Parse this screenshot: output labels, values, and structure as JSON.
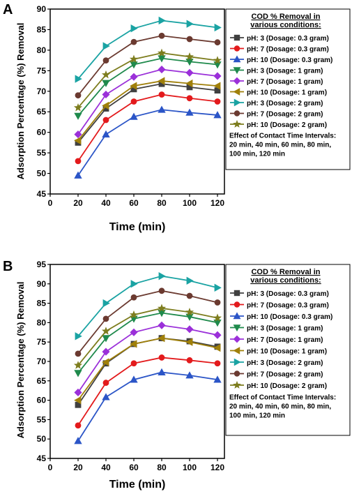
{
  "chart_data": [
    {
      "panel": "A",
      "type": "line",
      "xlabel": "Time (min)",
      "ylabel": "Adsorption Percentage (%) Removal",
      "xlim": [
        0,
        125
      ],
      "ylim": [
        45,
        90
      ],
      "xticks": [
        0,
        20,
        40,
        60,
        80,
        100,
        120
      ],
      "yticks": [
        45,
        50,
        55,
        60,
        65,
        70,
        75,
        80,
        85,
        90
      ],
      "x": [
        20,
        40,
        60,
        80,
        100,
        120
      ],
      "legend_title_lines": [
        "COD % Removal in",
        "various conditions:"
      ],
      "note_lines": [
        "Effect of Contact Time Intervals:",
        "20 min, 40 min, 60 min, 80 min,",
        "100 min, 120 min"
      ],
      "series": [
        {
          "name": "pH: 3 (Dosage: 0.3 gram)",
          "color": "#404040",
          "marker": "square",
          "values": [
            57.5,
            65.8,
            70.5,
            71.8,
            71.0,
            70.2
          ]
        },
        {
          "name": "pH: 7 (Dosage: 0.3 gram)",
          "color": "#e31a1c",
          "marker": "circle",
          "values": [
            53.0,
            63.0,
            67.5,
            69.2,
            68.3,
            67.5
          ]
        },
        {
          "name": "pH: 10 (Dosage: 0.3 gram)",
          "color": "#2b55c7",
          "marker": "triangle-up",
          "values": [
            49.5,
            59.5,
            63.8,
            65.5,
            64.8,
            64.2
          ]
        },
        {
          "name": "pH: 3 (Dosage: 1 gram)",
          "color": "#1f8a4c",
          "marker": "triangle-down",
          "values": [
            64.0,
            72.0,
            76.5,
            78.0,
            77.2,
            76.5
          ]
        },
        {
          "name": "pH: 7 (Dosage: 1 gram)",
          "color": "#9b30d9",
          "marker": "diamond",
          "values": [
            59.5,
            69.2,
            73.5,
            75.3,
            74.5,
            73.7
          ]
        },
        {
          "name": "pH: 10 (Dosage: 1 gram)",
          "color": "#a0800a",
          "marker": "triangle-left",
          "values": [
            58.0,
            66.5,
            71.3,
            72.5,
            71.9,
            71.3
          ]
        },
        {
          "name": "pH: 3 (Dosage: 2 gram)",
          "color": "#1aa3a3",
          "marker": "triangle-right",
          "values": [
            73.0,
            81.0,
            85.3,
            87.2,
            86.4,
            85.5
          ]
        },
        {
          "name": "pH: 7 (Dosage: 2 gram)",
          "color": "#6b3a30",
          "marker": "circle",
          "values": [
            69.0,
            77.5,
            82.0,
            83.5,
            82.7,
            81.9
          ]
        },
        {
          "name": "pH: 10 (Dosage: 2 gram)",
          "color": "#7d7d1e",
          "marker": "star",
          "values": [
            66.0,
            74.0,
            77.8,
            79.3,
            78.4,
            77.5
          ]
        }
      ]
    },
    {
      "panel": "B",
      "type": "line",
      "xlabel": "Time (min)",
      "ylabel": "Adsorption Percentage (%) Removal",
      "xlim": [
        0,
        125
      ],
      "ylim": [
        45,
        95
      ],
      "xticks": [
        0,
        20,
        40,
        60,
        80,
        100,
        120
      ],
      "yticks": [
        45,
        50,
        55,
        60,
        65,
        70,
        75,
        80,
        85,
        90,
        95
      ],
      "x": [
        20,
        40,
        60,
        80,
        100,
        120
      ],
      "legend_title_lines": [
        "COD % Removal in",
        "various conditions:"
      ],
      "note_lines": [
        "Effect of Contact Time Intervals:",
        "20 min, 40 min, 60 min, 80 min,",
        "100 min, 120 min"
      ],
      "series": [
        {
          "name": "pH: 3 (Dosage: 0.3 gram)",
          "color": "#404040",
          "marker": "square",
          "values": [
            58.8,
            69.5,
            74.5,
            76.0,
            75.2,
            73.8
          ]
        },
        {
          "name": "pH: 7 (Dosage: 0.3 gram)",
          "color": "#e31a1c",
          "marker": "circle",
          "values": [
            53.5,
            64.5,
            69.5,
            71.0,
            70.3,
            69.5
          ]
        },
        {
          "name": "pH: 10 (Dosage: 0.3 gram)",
          "color": "#2b55c7",
          "marker": "triangle-up",
          "values": [
            49.5,
            60.8,
            65.3,
            67.2,
            66.4,
            65.3
          ]
        },
        {
          "name": "pH: 3 (Dosage: 1 gram)",
          "color": "#1f8a4c",
          "marker": "triangle-down",
          "values": [
            67.0,
            76.0,
            81.0,
            82.5,
            81.5,
            80.0
          ]
        },
        {
          "name": "pH: 7 (Dosage: 1 gram)",
          "color": "#9b30d9",
          "marker": "diamond",
          "values": [
            62.0,
            72.5,
            77.5,
            79.3,
            78.3,
            76.8
          ]
        },
        {
          "name": "pH: 10 (Dosage: 1 gram)",
          "color": "#a0800a",
          "marker": "triangle-left",
          "values": [
            60.0,
            69.8,
            74.5,
            76.0,
            75.0,
            73.5
          ]
        },
        {
          "name": "pH: 3 (Dosage: 2 gram)",
          "color": "#1aa3a3",
          "marker": "triangle-right",
          "values": [
            76.5,
            85.0,
            90.0,
            92.0,
            90.8,
            89.0
          ]
        },
        {
          "name": "pH: 7 (Dosage: 2 gram)",
          "color": "#6b3a30",
          "marker": "circle",
          "values": [
            72.0,
            81.0,
            86.5,
            88.2,
            86.9,
            85.2
          ]
        },
        {
          "name": "pH: 10 (Dosage: 2 gram)",
          "color": "#7d7d1e",
          "marker": "star",
          "values": [
            69.0,
            77.8,
            82.0,
            83.7,
            82.7,
            81.2
          ]
        }
      ]
    }
  ]
}
